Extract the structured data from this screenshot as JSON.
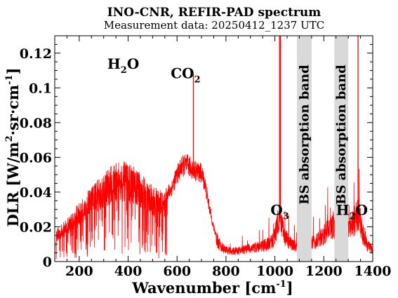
{
  "chart_data": {
    "type": "line",
    "title": "INO-CNR, REFIR-PAD spectrum",
    "subtitle": "Measurement data: 20250412_1237 UTC",
    "xlabel": "Wavenumber [cm",
    "xlabel_sup": "-1",
    "xlabel_end": "]",
    "ylabel": "DLR [W/m",
    "ylabel_sup1": "2",
    "ylabel_mid": "·sr·cm",
    "ylabel_sup2": "-1",
    "ylabel_end": "]",
    "xlim": [
      100,
      1400
    ],
    "ylim": [
      0,
      0.13
    ],
    "x_ticks": [
      200,
      400,
      600,
      800,
      1000,
      1200,
      1400
    ],
    "x_tick_labels": [
      "200",
      "400",
      "600",
      "800",
      "1000",
      "1200",
      "1400"
    ],
    "y_ticks": [
      0,
      0.02,
      0.04,
      0.06,
      0.08,
      0.1,
      0.12
    ],
    "y_tick_labels": [
      "0",
      "0.02",
      "0.04",
      "0.06",
      "0.08",
      "0.1",
      "0.12"
    ],
    "grid": false,
    "series_color": "#ff0000",
    "band_color": "#d9d9d9",
    "bands": [
      {
        "x0": 1090,
        "x1": 1150,
        "label": "BS absorption band"
      },
      {
        "x0": 1243,
        "x1": 1300,
        "label": "BS absorption band"
      }
    ],
    "annotations": [
      {
        "text": "H",
        "sub": "2",
        "tail": "O",
        "x": 380,
        "y": 0.111
      },
      {
        "text": "CO",
        "sub": "2",
        "tail": "",
        "x": 635,
        "y": 0.1055
      },
      {
        "text": "O",
        "sub": "3",
        "tail": "",
        "x": 1020,
        "y": 0.0268
      },
      {
        "text": "H",
        "sub": "2",
        "tail": "O",
        "x": 1315,
        "y": 0.0268
      }
    ],
    "envelope": [
      [
        105,
        0.018
      ],
      [
        130,
        0.021
      ],
      [
        160,
        0.026
      ],
      [
        190,
        0.031
      ],
      [
        220,
        0.036
      ],
      [
        250,
        0.042
      ],
      [
        280,
        0.047
      ],
      [
        310,
        0.051
      ],
      [
        340,
        0.054
      ],
      [
        370,
        0.056
      ],
      [
        400,
        0.0545
      ],
      [
        430,
        0.052
      ],
      [
        460,
        0.048
      ],
      [
        490,
        0.044
      ],
      [
        520,
        0.04
      ],
      [
        550,
        0.04
      ],
      [
        575,
        0.043
      ],
      [
        600,
        0.052
      ],
      [
        620,
        0.057
      ],
      [
        640,
        0.058
      ],
      [
        660,
        0.056
      ],
      [
        680,
        0.054
      ],
      [
        700,
        0.053
      ],
      [
        715,
        0.046
      ],
      [
        730,
        0.034
      ],
      [
        750,
        0.02
      ],
      [
        770,
        0.012
      ],
      [
        790,
        0.008
      ],
      [
        820,
        0.0065
      ],
      [
        860,
        0.007
      ],
      [
        900,
        0.0085
      ],
      [
        940,
        0.0095
      ],
      [
        970,
        0.011
      ],
      [
        990,
        0.013
      ],
      [
        1005,
        0.02
      ],
      [
        1015,
        0.03
      ],
      [
        1025,
        0.024
      ],
      [
        1040,
        0.016
      ],
      [
        1060,
        0.012
      ],
      [
        1090,
        0.009
      ],
      [
        1150,
        0.012
      ],
      [
        1180,
        0.014
      ],
      [
        1210,
        0.019
      ],
      [
        1243,
        0.024
      ],
      [
        1300,
        0.02
      ],
      [
        1320,
        0.024
      ],
      [
        1340,
        0.03
      ],
      [
        1360,
        0.018
      ],
      [
        1380,
        0.01
      ],
      [
        1400,
        0.008
      ]
    ],
    "peaks": [
      [
        667,
        0.108
      ],
      [
        1019,
        0.13
      ],
      [
        1023,
        0.13
      ],
      [
        1340,
        0.13
      ]
    ]
  }
}
